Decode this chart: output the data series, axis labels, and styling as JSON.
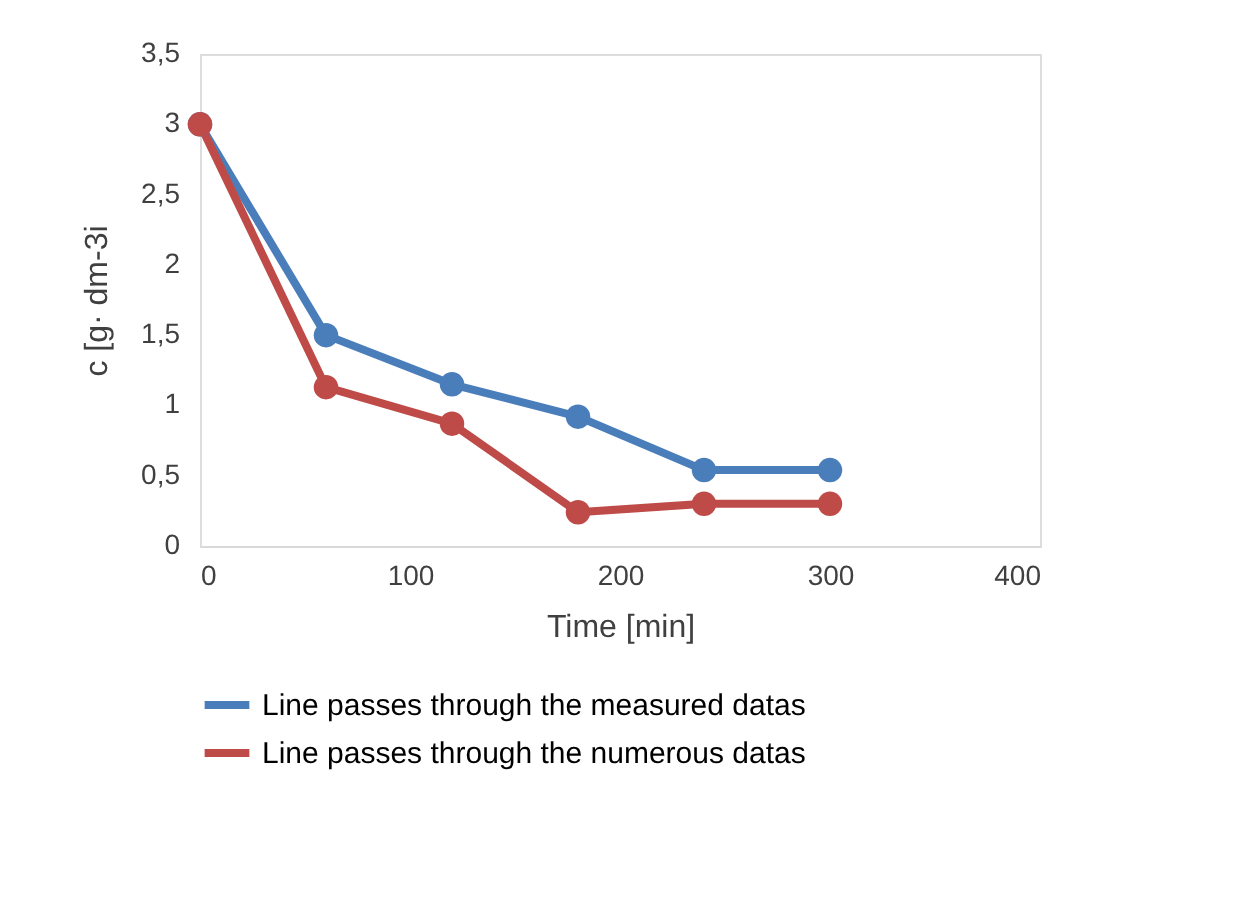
{
  "chart_data": {
    "type": "line",
    "xlabel": "Time [min]",
    "ylabel": "c [g· dm-3i",
    "x": [
      0,
      60,
      120,
      180,
      240,
      300
    ],
    "series": [
      {
        "name": "Line passes through the measured datas",
        "color": "#4a7ebb",
        "values": [
          3,
          1.5,
          1.15,
          0.92,
          0.54,
          0.54
        ]
      },
      {
        "name": "Line passes through the numerous datas",
        "color": "#be4b48",
        "values": [
          3,
          1.13,
          0.87,
          0.24,
          0.3,
          0.3
        ]
      }
    ],
    "xlim": [
      0,
      400
    ],
    "xticks": [
      0,
      100,
      200,
      300,
      400
    ],
    "ylim": [
      0,
      3.5
    ],
    "yticks": [
      0,
      {
        "value": 0.5,
        "label": "0,5"
      },
      1,
      {
        "value": 1.5,
        "label": "1,5"
      },
      2,
      {
        "value": 2.5,
        "label": "2,5"
      },
      3,
      {
        "value": 3.5,
        "label": "3,5"
      }
    ],
    "grid": false,
    "legend": "bottom",
    "marker": "circle",
    "line_style": "solid"
  }
}
